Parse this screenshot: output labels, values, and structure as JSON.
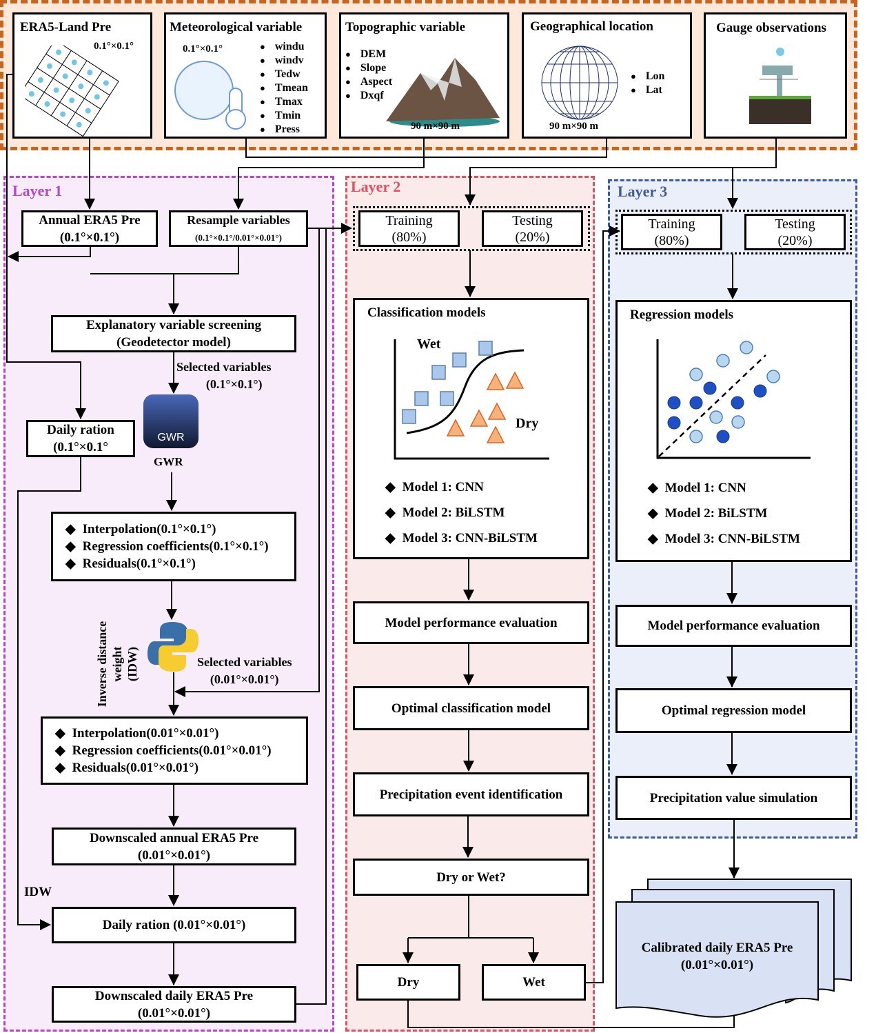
{
  "inputs": {
    "era5": {
      "title": "ERA5-Land Pre",
      "res": "0.1°×0.1°"
    },
    "met": {
      "title": "Meteorological variable",
      "res": "0.1°×0.1°",
      "items": [
        "windu",
        "windv",
        "Tedw",
        "Tmean",
        "Tmax",
        "Tmin",
        "Press"
      ]
    },
    "topo": {
      "title": "Topographic variable",
      "items": [
        "DEM",
        "Slope",
        "Aspect",
        "Dxqf"
      ],
      "res": "90 m×90 m"
    },
    "geo": {
      "title": "Geographical location",
      "items": [
        "Lon",
        "Lat"
      ],
      "res": "90 m×90 m"
    },
    "gauge": {
      "title": "Gauge observations"
    }
  },
  "layer1": {
    "title": "Layer 1",
    "annual": [
      "Annual ERA5 Pre",
      "(0.1°×0.1°)"
    ],
    "resample": [
      "Resample variables",
      "(0.1°×0.1°/0.01°×0.01°)"
    ],
    "screening": [
      "Explanatory variable screening",
      "(Geodetector model)"
    ],
    "selected1": [
      "Selected variables",
      "(0.1°×0.1°)"
    ],
    "daily_ration": [
      "Daily ration",
      "(0.1°×0.1°"
    ],
    "gwr_icon_text": "GWR",
    "gwr_label": "GWR",
    "interp1": [
      "Interpolation(0.1°×0.1°)",
      "Regression coefficients(0.1°×0.1°)",
      "Residuals(0.1°×0.1°)"
    ],
    "idw_vertical": [
      "Inverse distance",
      "weight",
      "(IDW)"
    ],
    "selected2": [
      "Selected variables",
      "(0.01°×0.01°)"
    ],
    "interp2": [
      "Interpolation(0.01°×0.01°)",
      "Regression coefficients(0.01°×0.01°)",
      "Residuals(0.01°×0.01°)"
    ],
    "down_annual": [
      "Downscaled annual ERA5 Pre",
      "(0.01°×0.01°)"
    ],
    "idw_label": "IDW",
    "daily_ration2": "Daily ration (0.01°×0.01°)",
    "down_daily": [
      "Downscaled daily ERA5 Pre",
      "(0.01°×0.01°)"
    ]
  },
  "layer2": {
    "title": "Layer 2",
    "training": [
      "Training",
      "(80%)"
    ],
    "testing": [
      "Testing",
      "(20%)"
    ],
    "models_title": "Classification models",
    "wet": "Wet",
    "dry": "Dry",
    "models": [
      "Model 1: CNN",
      "Model 2: BiLSTM",
      "Model 3: CNN-BiLSTM"
    ],
    "perf": "Model performance evaluation",
    "optimal": "Optimal classification model",
    "event": "Precipitation event identification",
    "question": "Dry or Wet?",
    "dry_box": "Dry",
    "wet_box": "Wet"
  },
  "layer3": {
    "title": "Layer 3",
    "training": [
      "Training",
      "(80%)"
    ],
    "testing": [
      "Testing",
      "(20%)"
    ],
    "models_title": "Regression models",
    "models": [
      "Model 1: CNN",
      "Model 2: BiLSTM",
      "Model 3: CNN-BiLSTM"
    ],
    "perf": "Model performance evaluation",
    "optimal": "Optimal regression model",
    "simulation": "Precipitation value simulation",
    "output": [
      "Calibrated daily ERA5 Pre",
      "(0.01°×0.01°)"
    ]
  },
  "colors": {
    "input_border": "#c8641c",
    "input_bg": "#fde8da",
    "layer1_border": "#b548c4",
    "layer1_bg": "#f8ecfb",
    "layer2_border": "#e0505e",
    "layer2_bg": "#fbeaea",
    "layer3_border": "#3b5b9b",
    "layer3_bg": "#eaeff9"
  }
}
